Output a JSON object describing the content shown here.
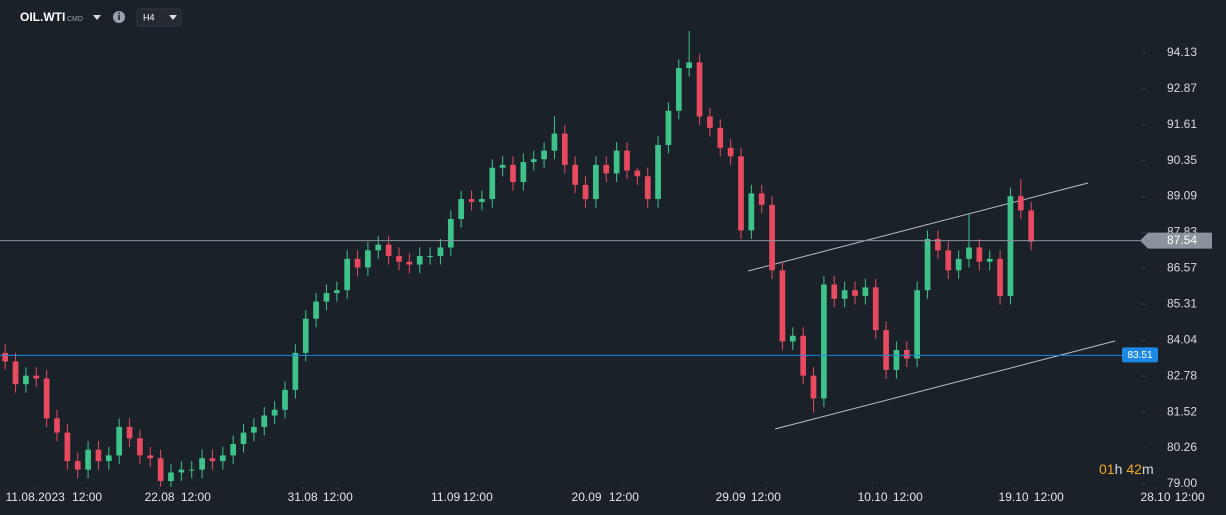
{
  "chart_data": {
    "type": "candlestick",
    "title": "OIL.WTI",
    "subtitle": "CMD",
    "timeframe": "H4",
    "timer": {
      "hours": "01",
      "h": "h",
      "minutes": "42",
      "m": "m"
    },
    "up_color": "#3ec48b",
    "down_color": "#e84a5f",
    "xlim": [
      -0.5,
      117.8
    ],
    "ylim": [
      78.89,
      95.99
    ],
    "yticks": [
      94.13,
      92.87,
      91.61,
      90.35,
      89.09,
      87.83,
      86.57,
      85.31,
      84.04,
      82.78,
      81.52,
      80.26,
      {
        "value": 79,
        "label": "79.00"
      }
    ],
    "xticks": [
      {
        "value": 2.9,
        "label": "11.08.2023"
      },
      {
        "value": 7.9,
        "label": "12:00"
      },
      {
        "value": 14.9,
        "label": "22.08"
      },
      {
        "value": 18.4,
        "label": "12:00"
      },
      {
        "value": 28.7,
        "label": "31.08"
      },
      {
        "value": 32.1,
        "label": "12:00"
      },
      {
        "value": 42.5,
        "label": "11.09"
      },
      {
        "value": 45.6,
        "label": "12:00"
      },
      {
        "value": 56.1,
        "label": "20.09"
      },
      {
        "value": 59.7,
        "label": "12:00"
      },
      {
        "value": 70,
        "label": "29.09"
      },
      {
        "value": 73.4,
        "label": "12:00"
      },
      {
        "value": 83.7,
        "label": "10.10"
      },
      {
        "value": 87.1,
        "label": "12:00"
      },
      {
        "value": 97.3,
        "label": "19.10"
      },
      {
        "value": 100.7,
        "label": "12:00"
      },
      {
        "value": 111,
        "label": "28.10"
      },
      {
        "value": 114.3,
        "label": "12:00"
      }
    ],
    "price_lines": [
      {
        "value": 87.54,
        "color": "#8a939c"
      },
      {
        "value": 83.51,
        "color": "#1e88e5"
      }
    ],
    "x": [
      0,
      1,
      2,
      3,
      4,
      5,
      6,
      7,
      8,
      9,
      10,
      11,
      12,
      13,
      14,
      15,
      16,
      17,
      18,
      19,
      20,
      21,
      22,
      23,
      24,
      25,
      26,
      27,
      28,
      29,
      30,
      31,
      32,
      33,
      34,
      35,
      36,
      37,
      38,
      39,
      40,
      41,
      42,
      43,
      44,
      45,
      46,
      47,
      48,
      49,
      50,
      51,
      52,
      53,
      54,
      55,
      56,
      57,
      58,
      59,
      60,
      61,
      62,
      63,
      64,
      65,
      66,
      67,
      68,
      69,
      70,
      71,
      72,
      73,
      74,
      75,
      76,
      77,
      78,
      79,
      80,
      81,
      82,
      83,
      84,
      85,
      86,
      87,
      88,
      89,
      90,
      91,
      92,
      93,
      94,
      95,
      96,
      97,
      98,
      99
    ],
    "open": [
      83.6,
      83.3,
      82.5,
      82.8,
      82.7,
      81.3,
      80.8,
      79.8,
      79.5,
      80.2,
      79.8,
      80.0,
      81.0,
      80.6,
      80.0,
      79.9,
      79.1,
      79.4,
      79.5,
      79.5,
      79.9,
      79.8,
      80.0,
      80.4,
      80.8,
      81.0,
      81.4,
      81.6,
      82.3,
      83.6,
      84.8,
      85.4,
      85.7,
      85.8,
      86.9,
      86.6,
      87.2,
      87.4,
      87.0,
      86.8,
      86.7,
      87.0,
      87.0,
      87.3,
      88.3,
      89.0,
      88.9,
      89.0,
      90.1,
      90.2,
      89.6,
      90.3,
      90.4,
      90.7,
      91.3,
      90.2,
      89.5,
      89.0,
      90.2,
      89.9,
      90.7,
      90.0,
      89.8,
      89.0,
      90.9,
      92.1,
      93.6,
      93.8,
      91.9,
      91.5,
      90.8,
      90.5,
      87.9,
      89.2,
      88.8,
      86.5,
      84.0,
      84.2,
      82.8,
      82.0,
      86.0,
      85.5,
      85.8,
      85.6,
      85.9,
      84.4,
      83.0,
      83.7,
      83.4,
      85.8,
      87.6,
      87.2,
      86.5,
      86.9,
      87.3,
      86.8,
      86.9,
      85.6,
      89.1,
      88.6
    ],
    "high": [
      83.9,
      83.6,
      83.1,
      83.1,
      83.0,
      81.6,
      81.1,
      80.1,
      80.5,
      80.5,
      80.3,
      81.3,
      81.3,
      80.9,
      80.3,
      80.2,
      79.7,
      79.8,
      79.8,
      80.2,
      80.2,
      80.3,
      80.7,
      81.1,
      81.3,
      81.7,
      81.9,
      82.6,
      83.9,
      85.1,
      85.7,
      86.0,
      86.1,
      87.2,
      87.2,
      87.5,
      87.7,
      87.7,
      87.3,
      87.1,
      87.3,
      87.3,
      87.6,
      88.6,
      89.3,
      89.3,
      89.3,
      90.4,
      90.5,
      90.5,
      90.6,
      90.7,
      91.0,
      91.9,
      91.6,
      90.5,
      89.8,
      90.5,
      90.5,
      91.0,
      91.0,
      90.1,
      90.1,
      91.2,
      92.4,
      93.9,
      94.9,
      94.1,
      92.2,
      91.8,
      91.1,
      90.8,
      89.5,
      89.5,
      89.1,
      86.8,
      84.5,
      84.5,
      83.1,
      86.3,
      86.3,
      86.1,
      86.1,
      86.2,
      86.2,
      84.7,
      84.0,
      84.0,
      86.1,
      87.9,
      87.9,
      87.5,
      87.2,
      88.5,
      87.6,
      87.2,
      87.2,
      89.4,
      89.7,
      88.9
    ],
    "low": [
      83.0,
      82.2,
      82.2,
      82.4,
      81.0,
      80.5,
      79.5,
      79.2,
      79.2,
      79.5,
      79.5,
      79.7,
      80.3,
      79.7,
      79.6,
      78.9,
      78.9,
      79.1,
      79.2,
      79.2,
      79.5,
      79.5,
      79.7,
      80.1,
      80.5,
      80.7,
      81.1,
      81.3,
      82.0,
      83.3,
      84.5,
      85.1,
      85.4,
      85.5,
      86.3,
      86.3,
      86.9,
      86.7,
      86.5,
      86.4,
      86.4,
      86.7,
      86.7,
      87.0,
      88.0,
      88.6,
      88.6,
      88.7,
      89.8,
      89.3,
      89.3,
      90.0,
      90.1,
      90.4,
      89.9,
      89.2,
      88.7,
      88.7,
      89.6,
      89.6,
      89.7,
      89.5,
      88.7,
      88.7,
      90.6,
      91.8,
      93.3,
      91.6,
      91.2,
      90.5,
      90.2,
      87.6,
      87.6,
      88.5,
      86.2,
      83.7,
      83.7,
      82.5,
      81.5,
      81.7,
      85.2,
      85.2,
      85.3,
      85.3,
      84.1,
      82.7,
      82.7,
      83.1,
      83.1,
      85.5,
      86.9,
      86.2,
      86.2,
      86.6,
      86.5,
      86.5,
      85.3,
      85.3,
      88.3,
      87.2
    ],
    "close": [
      83.3,
      82.5,
      82.8,
      82.7,
      81.3,
      80.8,
      79.8,
      79.5,
      80.2,
      79.8,
      80.0,
      81.0,
      80.6,
      80.0,
      79.9,
      79.1,
      79.4,
      79.5,
      79.5,
      79.9,
      79.8,
      80.0,
      80.4,
      80.8,
      81.0,
      81.4,
      81.6,
      82.3,
      83.6,
      84.8,
      85.4,
      85.7,
      85.8,
      86.9,
      86.6,
      87.2,
      87.4,
      87.0,
      86.8,
      86.7,
      87.0,
      87.0,
      87.3,
      88.3,
      89.0,
      88.9,
      89.0,
      90.1,
      90.2,
      89.6,
      90.3,
      90.4,
      90.7,
      91.3,
      90.2,
      89.5,
      89.0,
      90.2,
      89.9,
      90.7,
      90.0,
      89.8,
      89.0,
      90.9,
      92.1,
      93.6,
      93.8,
      91.9,
      91.5,
      90.8,
      90.5,
      87.9,
      89.2,
      88.8,
      86.5,
      84.0,
      84.2,
      82.8,
      82.0,
      86.0,
      85.5,
      85.8,
      85.6,
      85.9,
      84.4,
      83.0,
      83.7,
      83.4,
      85.8,
      87.6,
      87.2,
      86.5,
      86.9,
      87.3,
      86.8,
      86.9,
      85.6,
      89.1,
      88.6,
      87.5
    ]
  }
}
